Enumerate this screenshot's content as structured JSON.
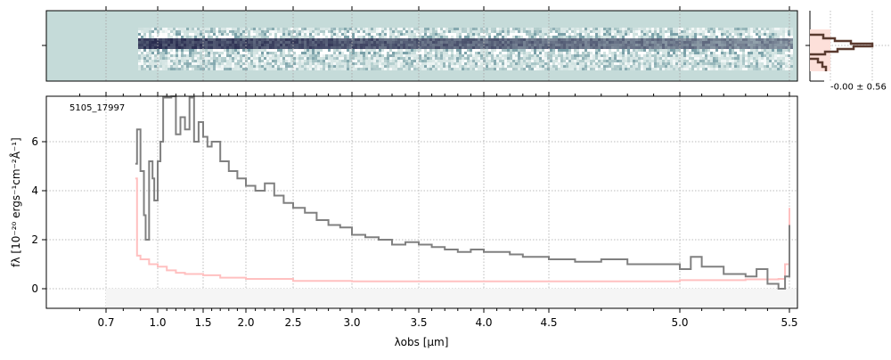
{
  "chart_data": {
    "type": "line",
    "label": "5105_17997",
    "xlabel": "λobs [μm]",
    "ylabel": "fλ [10⁻²⁰ ergs⁻¹cm⁻²Å⁻¹]",
    "xticks": [
      0.7,
      1.0,
      1.5,
      2.0,
      2.5,
      3.0,
      3.5,
      4.0,
      4.5,
      5.0,
      5.5
    ],
    "xtick_labels": [
      "0.7",
      "1.0",
      "1.5",
      "2.0",
      "2.5",
      "3.0",
      "3.5",
      "4.0",
      "4.5",
      "5.0",
      "5.5"
    ],
    "yticks": [
      0,
      2,
      4,
      6
    ],
    "ytick_labels": [
      "0",
      "2",
      "4",
      "6"
    ],
    "xlim": [
      0.5,
      5.52
    ],
    "ylim": [
      -0.8,
      7.85
    ],
    "grid": true,
    "colors": {
      "spectrum": "#808080",
      "model": "#ffc0c0",
      "image_bg": "#c5dbd9",
      "hist": "#5a3a2f"
    },
    "series": [
      {
        "x": [
          0.87,
          0.88,
          0.9,
          0.92,
          0.93,
          0.95,
          0.97,
          0.98,
          1.0,
          1.03,
          1.06,
          1.1,
          1.15,
          1.2,
          1.25,
          1.3,
          1.35,
          1.4,
          1.45,
          1.5,
          1.55,
          1.6,
          1.7,
          1.8,
          1.9,
          2.0,
          2.1,
          2.2,
          2.3,
          2.4,
          2.5,
          2.6,
          2.7,
          2.8,
          2.9,
          3.0,
          3.1,
          3.2,
          3.3,
          3.4,
          3.5,
          3.6,
          3.7,
          3.8,
          3.9,
          4.0,
          4.1,
          4.2,
          4.3,
          4.4,
          4.5,
          4.6,
          4.7,
          4.8,
          4.9,
          5.0,
          5.05,
          5.1,
          5.2,
          5.3,
          5.35,
          5.4,
          5.45,
          5.48,
          5.5
        ],
        "y": [
          5.1,
          6.5,
          4.8,
          3.0,
          2.0,
          5.2,
          4.5,
          3.6,
          5.2,
          6.0,
          7.8,
          7.8,
          7.9,
          6.3,
          7.0,
          6.5,
          7.8,
          6.0,
          6.8,
          6.2,
          5.8,
          6.0,
          5.2,
          4.8,
          4.5,
          4.2,
          4.0,
          4.3,
          3.8,
          3.5,
          3.3,
          3.1,
          2.8,
          2.6,
          2.5,
          2.2,
          2.1,
          2.0,
          1.8,
          1.9,
          1.8,
          1.7,
          1.6,
          1.5,
          1.6,
          1.5,
          1.5,
          1.4,
          1.3,
          1.3,
          1.2,
          1.1,
          1.2,
          1.0,
          1.0,
          0.8,
          1.3,
          0.9,
          0.6,
          0.5,
          0.8,
          0.2,
          0.0,
          0.5,
          2.6
        ]
      },
      {
        "x": [
          0.87,
          0.875,
          0.88,
          0.9,
          0.95,
          1.0,
          1.1,
          1.2,
          1.3,
          1.5,
          1.7,
          2.0,
          2.5,
          3.0,
          3.5,
          4.0,
          4.5,
          5.0,
          5.3,
          5.45,
          5.48,
          5.5
        ],
        "y": [
          4.5,
          4.5,
          1.35,
          1.2,
          1.0,
          0.9,
          0.75,
          0.65,
          0.6,
          0.55,
          0.45,
          0.4,
          0.32,
          0.3,
          0.3,
          0.3,
          0.3,
          0.35,
          0.38,
          0.4,
          1.0,
          3.3
        ]
      }
    ],
    "hist_annotation": "-0.00 ± 0.56"
  }
}
